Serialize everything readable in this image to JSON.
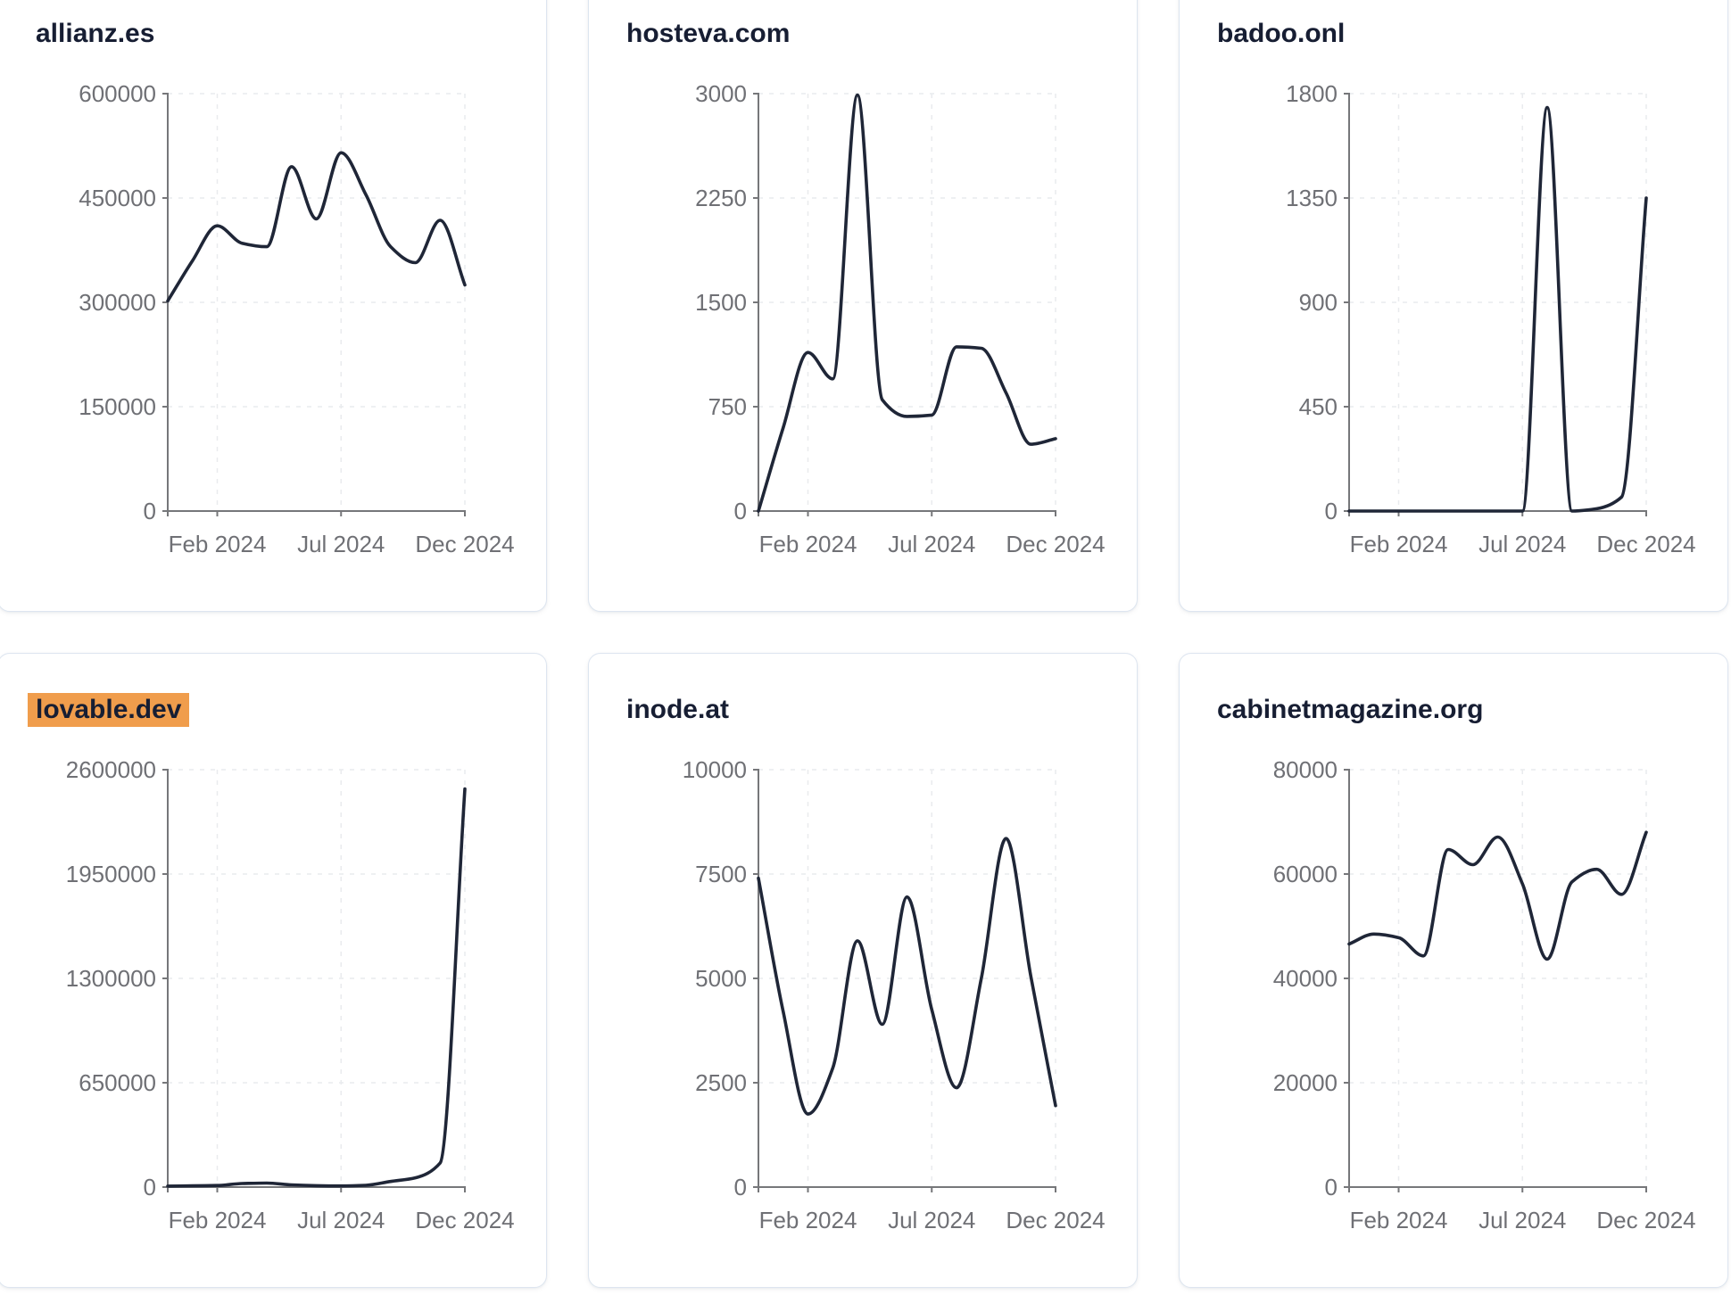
{
  "colors": {
    "line": "#1f2637",
    "title_text": "#171e33",
    "highlight": "#f09d4c",
    "axis": "#76777a",
    "tick_label": "#6f7075",
    "gridline": "#e9ebee",
    "card_border": "#dde5f0",
    "page_background": "#ffffff"
  },
  "x_months": [
    "Dec 2023",
    "Jan 2024",
    "Feb 2024",
    "Mar 2024",
    "Apr 2024",
    "May 2024",
    "Jun 2024",
    "Jul 2024",
    "Aug 2024",
    "Sep 2024",
    "Oct 2024",
    "Nov 2024",
    "Dec 2024"
  ],
  "chart_data": [
    {
      "type": "line",
      "title": "allianz.es",
      "highlighted": false,
      "x": [
        "Dec 2023",
        "Jan 2024",
        "Feb 2024",
        "Mar 2024",
        "Apr 2024",
        "May 2024",
        "Jun 2024",
        "Jul 2024",
        "Aug 2024",
        "Sep 2024",
        "Oct 2024",
        "Nov 2024",
        "Dec 2024"
      ],
      "values": [
        302000,
        360000,
        410000,
        385000,
        380000,
        495000,
        420000,
        515000,
        455000,
        380000,
        357000,
        418000,
        325000
      ],
      "y_ticks": [
        600000,
        450000,
        300000,
        150000,
        0
      ],
      "ylim": [
        0,
        600000
      ],
      "x_tick_labels": [
        "Feb 2024",
        "Jul 2024",
        "Dec 2024"
      ],
      "x_tick_slots": [
        2,
        7,
        12
      ],
      "grid": true,
      "legend": false
    },
    {
      "type": "line",
      "title": "hosteva.com",
      "highlighted": false,
      "x": [
        "Dec 2023",
        "Jan 2024",
        "Feb 2024",
        "Mar 2024",
        "Apr 2024",
        "May 2024",
        "Jun 2024",
        "Jul 2024",
        "Aug 2024",
        "Sep 2024",
        "Oct 2024",
        "Nov 2024",
        "Dec 2024"
      ],
      "values": [
        0,
        600,
        1140,
        950,
        2990,
        800,
        680,
        690,
        1180,
        1170,
        850,
        480,
        520
      ],
      "y_ticks": [
        3000,
        2250,
        1500,
        750,
        0
      ],
      "ylim": [
        0,
        3000
      ],
      "x_tick_labels": [
        "Feb 2024",
        "Jul 2024",
        "Dec 2024"
      ],
      "x_tick_slots": [
        2,
        7,
        12
      ],
      "grid": true,
      "legend": false
    },
    {
      "type": "line",
      "title": "badoo.onl",
      "highlighted": false,
      "x": [
        "Dec 2023",
        "Jan 2024",
        "Feb 2024",
        "Mar 2024",
        "Apr 2024",
        "May 2024",
        "Jun 2024",
        "Jul 2024",
        "Aug 2024",
        "Sep 2024",
        "Oct 2024",
        "Nov 2024",
        "Dec 2024"
      ],
      "values": [
        0,
        0,
        0,
        0,
        0,
        0,
        0,
        0,
        1740,
        0,
        10,
        60,
        1350
      ],
      "y_ticks": [
        1800,
        1350,
        900,
        450,
        0
      ],
      "ylim": [
        0,
        1800
      ],
      "x_tick_labels": [
        "Feb 2024",
        "Jul 2024",
        "Dec 2024"
      ],
      "x_tick_slots": [
        2,
        7,
        12
      ],
      "grid": true,
      "legend": false
    },
    {
      "type": "line",
      "title": "lovable.dev",
      "highlighted": true,
      "x": [
        "Dec 2023",
        "Jan 2024",
        "Feb 2024",
        "Mar 2024",
        "Apr 2024",
        "May 2024",
        "Jun 2024",
        "Jul 2024",
        "Aug 2024",
        "Sep 2024",
        "Oct 2024",
        "Nov 2024",
        "Dec 2024"
      ],
      "values": [
        6000,
        8000,
        10000,
        22000,
        25000,
        14000,
        9000,
        7000,
        11000,
        35000,
        58000,
        150000,
        2480000
      ],
      "y_ticks": [
        2600000,
        1950000,
        1300000,
        650000,
        0
      ],
      "ylim": [
        0,
        2600000
      ],
      "x_tick_labels": [
        "Feb 2024",
        "Jul 2024",
        "Dec 2024"
      ],
      "x_tick_slots": [
        2,
        7,
        12
      ],
      "grid": true,
      "legend": false
    },
    {
      "type": "line",
      "title": "inode.at",
      "highlighted": false,
      "x": [
        "Dec 2023",
        "Jan 2024",
        "Feb 2024",
        "Mar 2024",
        "Apr 2024",
        "May 2024",
        "Jun 2024",
        "Jul 2024",
        "Aug 2024",
        "Sep 2024",
        "Oct 2024",
        "Nov 2024",
        "Dec 2024"
      ],
      "values": [
        7400,
        4200,
        1750,
        2850,
        5900,
        3900,
        6950,
        4250,
        2380,
        5000,
        8350,
        5050,
        1950
      ],
      "y_ticks": [
        10000,
        7500,
        5000,
        2500,
        0
      ],
      "ylim": [
        0,
        10000
      ],
      "x_tick_labels": [
        "Feb 2024",
        "Jul 2024",
        "Dec 2024"
      ],
      "x_tick_slots": [
        2,
        7,
        12
      ],
      "grid": true,
      "legend": false
    },
    {
      "type": "line",
      "title": "cabinetmagazine.org",
      "highlighted": false,
      "x": [
        "Dec 2023",
        "Jan 2024",
        "Feb 2024",
        "Mar 2024",
        "Apr 2024",
        "May 2024",
        "Jun 2024",
        "Jul 2024",
        "Aug 2024",
        "Sep 2024",
        "Oct 2024",
        "Nov 2024",
        "Dec 2024"
      ],
      "values": [
        46600,
        48500,
        47800,
        44300,
        64700,
        61800,
        67100,
        58100,
        43700,
        58500,
        60900,
        56100,
        68000
      ],
      "y_ticks": [
        80000,
        60000,
        40000,
        20000,
        0
      ],
      "ylim": [
        0,
        80000
      ],
      "x_tick_labels": [
        "Feb 2024",
        "Jul 2024",
        "Dec 2024"
      ],
      "x_tick_slots": [
        2,
        7,
        12
      ],
      "grid": true,
      "legend": false
    }
  ]
}
